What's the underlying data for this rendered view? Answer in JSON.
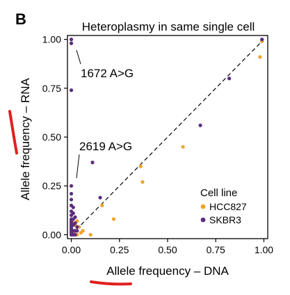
{
  "panel_label": "B",
  "colors": {
    "HCC827": "#f0a22a",
    "SKBR3": "#5b2d7e",
    "diagonal": "#000000",
    "pen_mark": "#e0201f"
  },
  "chart_data": {
    "type": "scatter",
    "title": "Heteroplasmy in same single cell",
    "xlabel": "Allele frequency – DNA",
    "ylabel": "Allele frequency – RNA",
    "xlim": [
      -0.02,
      1.02
    ],
    "ylim": [
      -0.02,
      1.02
    ],
    "xticks": [
      0.0,
      0.25,
      0.5,
      0.75,
      1.0
    ],
    "yticks": [
      0.0,
      0.25,
      0.5,
      0.75,
      1.0
    ],
    "xtick_labels": [
      "0.00",
      "0.25",
      "0.50",
      "0.75",
      "1.00"
    ],
    "ytick_labels": [
      "0.00",
      "0.25",
      "0.50",
      "0.75",
      "1.00"
    ],
    "reference_line": "y = x",
    "grid": false,
    "legend": {
      "title": "Cell line",
      "placement": "bottom-right"
    },
    "series": [
      {
        "name": "HCC827",
        "points": [
          [
            0.99,
            0.99
          ],
          [
            0.98,
            0.91
          ],
          [
            0.58,
            0.45
          ],
          [
            0.36,
            0.35
          ],
          [
            0.37,
            0.27
          ],
          [
            0.22,
            0.08
          ],
          [
            0.16,
            0.15
          ],
          [
            0.1,
            0.0
          ],
          [
            0.05,
            0.01
          ],
          [
            0.04,
            0.04
          ],
          [
            0.03,
            0.07
          ],
          [
            0.02,
            0.02
          ],
          [
            0.01,
            0.01
          ],
          [
            0.0,
            0.0
          ],
          [
            0.02,
            0.05
          ],
          [
            0.06,
            0.02
          ],
          [
            0.03,
            0.0
          ],
          [
            0.01,
            0.06
          ],
          [
            0.0,
            0.03
          ]
        ]
      },
      {
        "name": "SKBR3",
        "points": [
          [
            0.0,
            1.0
          ],
          [
            0.0,
            0.98
          ],
          [
            0.0,
            0.74
          ],
          [
            0.99,
            1.0
          ],
          [
            0.82,
            0.8
          ],
          [
            0.67,
            0.56
          ],
          [
            0.15,
            0.19
          ],
          [
            0.11,
            0.37
          ],
          [
            0.0,
            0.25
          ],
          [
            0.0,
            0.21
          ],
          [
            0.0,
            0.18
          ],
          [
            0.0,
            0.15
          ],
          [
            0.0,
            0.12
          ],
          [
            0.0,
            0.1
          ],
          [
            0.0,
            0.08
          ],
          [
            0.0,
            0.06
          ],
          [
            0.01,
            0.05
          ],
          [
            0.0,
            0.04
          ],
          [
            0.0,
            0.03
          ],
          [
            0.01,
            0.02
          ],
          [
            0.0,
            0.01
          ],
          [
            0.02,
            0.0
          ],
          [
            0.0,
            0.0
          ],
          [
            0.01,
            0.11
          ],
          [
            0.02,
            0.09
          ],
          [
            0.0,
            0.07
          ],
          [
            0.03,
            0.04
          ],
          [
            0.02,
            0.02
          ],
          [
            0.0,
            0.05
          ],
          [
            0.01,
            0.14
          ],
          [
            0.02,
            0.06
          ],
          [
            0.01,
            0.08
          ],
          [
            0.03,
            0.02
          ],
          [
            0.01,
            0.0
          ],
          [
            0.0,
            0.02
          ]
        ]
      }
    ],
    "annotations": [
      {
        "text": "1672 A>G",
        "point": [
          0.0,
          1.0
        ]
      },
      {
        "text": "2619 A>G",
        "point": [
          0.0,
          0.25
        ]
      }
    ]
  }
}
